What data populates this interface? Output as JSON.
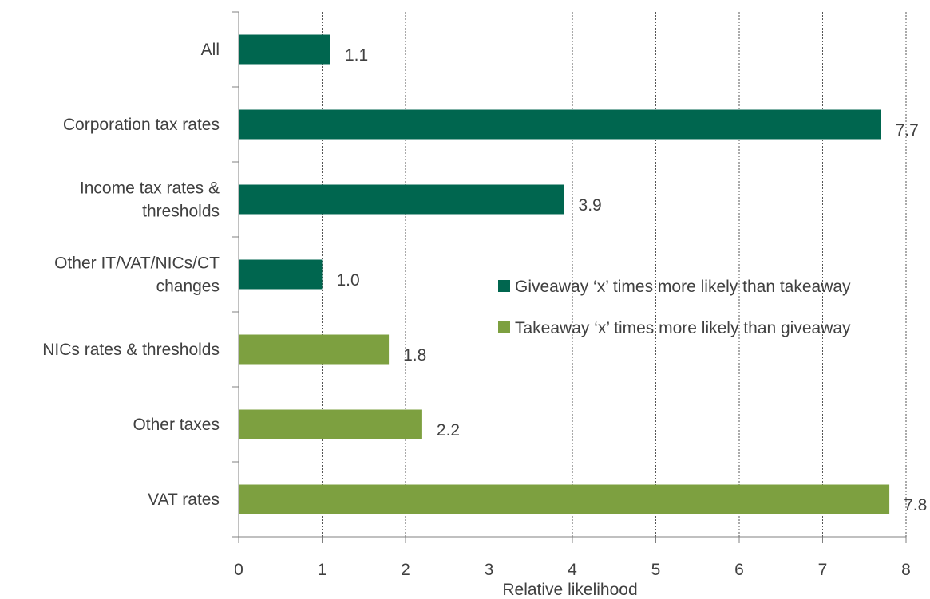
{
  "chart_data": {
    "type": "bar",
    "orientation": "horizontal",
    "categories": [
      [
        "All"
      ],
      [
        "Corporation tax rates"
      ],
      [
        "Income tax rates &",
        "thresholds"
      ],
      [
        "Other IT/VAT/NICs/CT",
        "changes"
      ],
      [
        "NICs rates & thresholds"
      ],
      [
        "Other taxes"
      ],
      [
        "VAT rates"
      ]
    ],
    "values": [
      1.1,
      7.7,
      3.9,
      1.0,
      1.8,
      2.2,
      7.8
    ],
    "value_labels": [
      "1.1",
      "7.7",
      "3.9",
      "1.0",
      "1.8",
      "2.2",
      "7.8"
    ],
    "series_index": [
      0,
      0,
      0,
      0,
      1,
      1,
      1
    ],
    "series": [
      {
        "name": "Giveaway ‘x’ times more likely than takeaway",
        "color": "#00664f"
      },
      {
        "name": "Takeaway ‘x’ times more likely than giveaway",
        "color": "#7da040"
      }
    ],
    "xlabel": "Relative likelihood",
    "ylabel": "",
    "xlim": [
      0,
      8
    ],
    "xticks": [
      "0",
      "1",
      "2",
      "3",
      "4",
      "5",
      "6",
      "7",
      "8"
    ],
    "grid": "vertical dotted",
    "legend_position": "right"
  }
}
